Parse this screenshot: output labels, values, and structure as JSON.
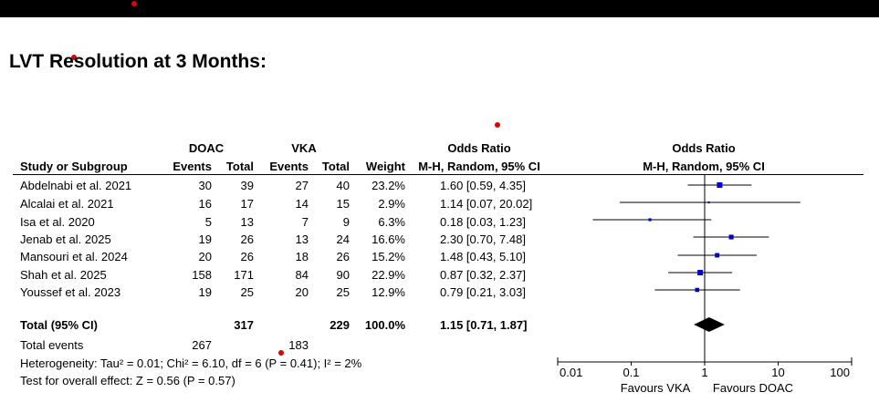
{
  "title": "LVT Resolution at 3 Months:",
  "colors": {
    "topbar": "#000000",
    "marker": "#0000cc",
    "diamond": "#000000",
    "annotation_dot": "#e00000"
  },
  "headers": {
    "doac": "DOAC",
    "vka": "VKA",
    "odds_ratio": "Odds Ratio",
    "study": "Study or Subgroup",
    "events1": "Events",
    "total1": "Total",
    "events2": "Events",
    "total2": "Total",
    "weight": "Weight",
    "method": "M-H, Random, 95% CI",
    "plot_title": "Odds Ratio",
    "plot_method": "M-H, Random, 95% CI"
  },
  "studies": [
    {
      "name": "Abdelnabi et al. 2021",
      "e1": "30",
      "t1": "39",
      "e2": "27",
      "t2": "40",
      "weight": "23.2%",
      "ci_text": "1.60 [0.59, 4.35]"
    },
    {
      "name": "Alcalai et al. 2021",
      "e1": "16",
      "t1": "17",
      "e2": "14",
      "t2": "15",
      "weight": "2.9%",
      "ci_text": "1.14 [0.07, 20.02]"
    },
    {
      "name": "Isa et al. 2020",
      "e1": "5",
      "t1": "13",
      "e2": "7",
      "t2": "9",
      "weight": "6.3%",
      "ci_text": "0.18 [0.03, 1.23]"
    },
    {
      "name": "Jenab et al. 2025",
      "e1": "19",
      "t1": "26",
      "e2": "13",
      "t2": "24",
      "weight": "16.6%",
      "ci_text": "2.30 [0.70, 7.48]"
    },
    {
      "name": "Mansouri et al. 2024",
      "e1": "20",
      "t1": "26",
      "e2": "18",
      "t2": "26",
      "weight": "15.2%",
      "ci_text": "1.48 [0.43, 5.10]"
    },
    {
      "name": "Shah et al. 2025",
      "e1": "158",
      "t1": "171",
      "e2": "84",
      "t2": "90",
      "weight": "22.9%",
      "ci_text": "0.87 [0.32, 2.37]"
    },
    {
      "name": "Youssef et al. 2023",
      "e1": "19",
      "t1": "25",
      "e2": "20",
      "t2": "25",
      "weight": "12.9%",
      "ci_text": "0.79 [0.21, 3.03]"
    }
  ],
  "total": {
    "label": "Total (95% CI)",
    "t1": "317",
    "t2": "229",
    "weight": "100.0%",
    "ci_text": "1.15 [0.71, 1.87]"
  },
  "total_events": {
    "label": "Total events",
    "e1": "267",
    "e2": "183"
  },
  "heterogeneity": "Heterogeneity: Tau² = 0.01; Chi² = 6.10, df = 6 (P = 0.41); I² = 2%",
  "overall_effect": "Test for overall effect: Z = 0.56 (P = 0.57)",
  "chart_data": {
    "type": "forest",
    "scale": "log",
    "xlim": [
      0.01,
      100
    ],
    "ticks": [
      0.01,
      0.1,
      1,
      10,
      100
    ],
    "tick_labels": [
      "0.01",
      "0.1",
      "1",
      "10",
      "100"
    ],
    "reference_line": 1,
    "favours_left": "Favours VKA",
    "favours_right": "Favours DOAC",
    "points": [
      {
        "study": "Abdelnabi et al. 2021",
        "or": 1.6,
        "lo": 0.59,
        "hi": 4.35,
        "weight": 23.2
      },
      {
        "study": "Alcalai et al. 2021",
        "or": 1.14,
        "lo": 0.07,
        "hi": 20.02,
        "weight": 2.9
      },
      {
        "study": "Isa et al. 2020",
        "or": 0.18,
        "lo": 0.03,
        "hi": 1.23,
        "weight": 6.3
      },
      {
        "study": "Jenab et al. 2025",
        "or": 2.3,
        "lo": 0.7,
        "hi": 7.48,
        "weight": 16.6
      },
      {
        "study": "Mansouri et al. 2024",
        "or": 1.48,
        "lo": 0.43,
        "hi": 5.1,
        "weight": 15.2
      },
      {
        "study": "Shah et al. 2025",
        "or": 0.87,
        "lo": 0.32,
        "hi": 2.37,
        "weight": 22.9
      },
      {
        "study": "Youssef et al. 2023",
        "or": 0.79,
        "lo": 0.21,
        "hi": 3.03,
        "weight": 12.9
      }
    ],
    "pooled": {
      "or": 1.15,
      "lo": 0.71,
      "hi": 1.87
    }
  }
}
